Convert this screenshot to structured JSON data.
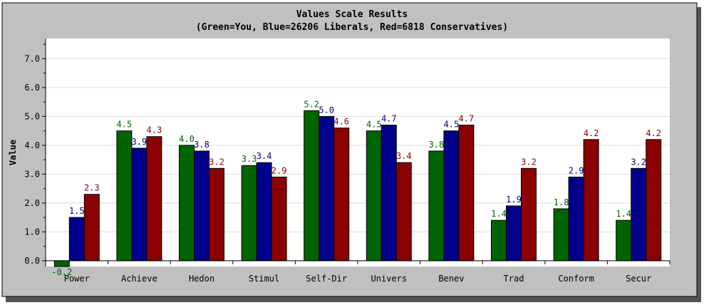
{
  "chart_data": {
    "type": "bar",
    "title": "Values Scale Results",
    "subtitle": "(Green=You, Blue=26206 Liberals, Red=6818 Conservatives)",
    "xlabel": "",
    "ylabel": "Value",
    "ylim": [
      -0.2,
      7.7
    ],
    "yticks": [
      "0.0",
      "1.0",
      "2.0",
      "3.0",
      "4.0",
      "5.0",
      "6.0",
      "7.0"
    ],
    "grid": true,
    "legend": "none",
    "categories": [
      "Power",
      "Achieve",
      "Hedon",
      "Stimul",
      "Self-Dir",
      "Univers",
      "Benev",
      "Trad",
      "Conform",
      "Secur"
    ],
    "series": [
      {
        "color": "#006400",
        "values": [
          -0.2,
          4.5,
          4.0,
          3.3,
          5.2,
          4.5,
          3.8,
          1.4,
          1.8,
          1.4
        ],
        "labels": [
          "-0.2",
          "4.5",
          "4.0",
          "3.3",
          "5.2",
          "4.5",
          "3.8",
          "1.4",
          "1.8",
          "1.4"
        ]
      },
      {
        "color": "#00008b",
        "values": [
          1.5,
          3.9,
          3.8,
          3.4,
          5.0,
          4.7,
          4.5,
          1.9,
          2.9,
          3.2
        ],
        "labels": [
          "1.5",
          "3.9",
          "3.8",
          "3.4",
          "5.0",
          "4.7",
          "4.5",
          "1.9",
          "2.9",
          "3.2"
        ]
      },
      {
        "color": "#8b0000",
        "values": [
          2.3,
          4.3,
          3.2,
          2.9,
          4.6,
          3.4,
          4.7,
          3.2,
          4.2,
          4.2
        ],
        "labels": [
          "2.3",
          "4.3",
          "3.2",
          "2.9",
          "4.6",
          "3.4",
          "4.7",
          "3.2",
          "4.2",
          "4.2"
        ]
      }
    ]
  }
}
